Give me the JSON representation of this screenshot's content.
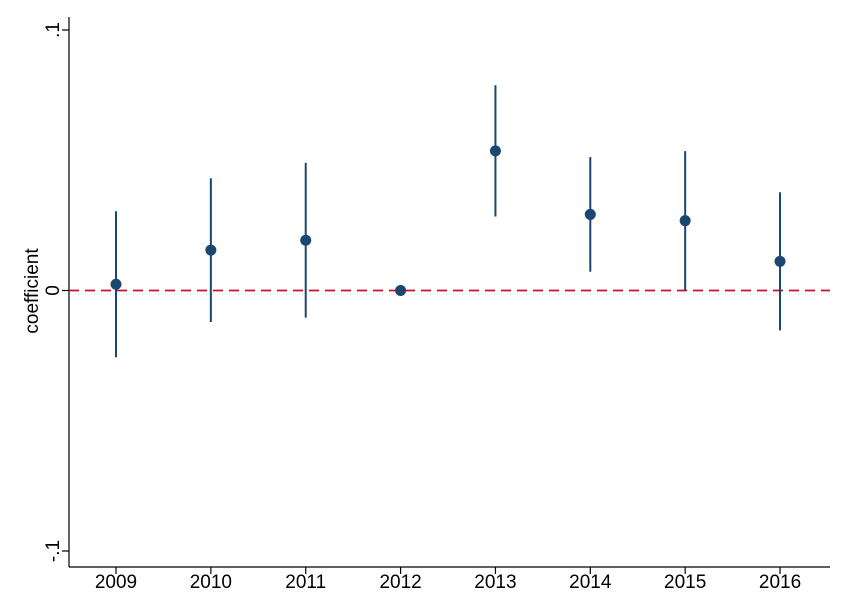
{
  "chart_data": {
    "type": "scatter",
    "subtype": "coefficient-plot-with-confidence-intervals",
    "title": "",
    "xlabel": "",
    "ylabel": "coefficient",
    "categories": [
      "2009",
      "2010",
      "2011",
      "2012",
      "2013",
      "2014",
      "2015",
      "2016"
    ],
    "series": [
      {
        "estimate": [
          0.0024,
          0.0155,
          0.0193,
          0.0,
          0.0536,
          0.0292,
          0.0268,
          0.0112
        ],
        "ci_lower": [
          -0.0256,
          -0.0121,
          -0.0104,
          0.0,
          0.0284,
          0.0072,
          0.0001,
          -0.0153
        ],
        "ci_upper": [
          0.0304,
          0.0431,
          0.049,
          0.0,
          0.0788,
          0.0512,
          0.0535,
          0.0377
        ]
      }
    ],
    "ylim": [
      -0.1,
      0.1
    ],
    "yticks": [
      {
        "value": -0.1,
        "label": "-.1"
      },
      {
        "value": 0,
        "label": "0"
      },
      {
        "value": 0.1,
        "label": ".1"
      }
    ],
    "reference_line": {
      "value": 0,
      "style": "dashed",
      "color": "#c8102e"
    },
    "marker_color": "#1a476f",
    "line_color": "#1a476f",
    "grid": false,
    "legend": "none"
  }
}
